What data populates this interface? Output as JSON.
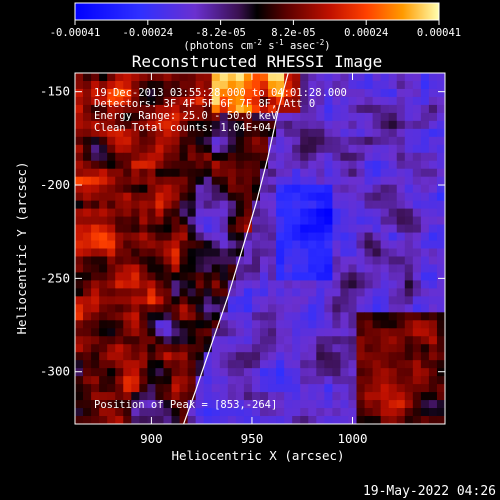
{
  "chart_data": {
    "type": "heatmap",
    "title": "Reconstructed RHESSI Image",
    "xlabel": "Heliocentric X (arcsec)",
    "ylabel": "Heliocentric Y (arcsec)",
    "xlim": [
      862,
      1046
    ],
    "ylim": [
      -328,
      -140
    ],
    "x_ticks": [
      900,
      950,
      1000
    ],
    "y_ticks": [
      -150,
      -200,
      -250,
      -300
    ],
    "colorbar": {
      "ticks": [
        "-0.00041",
        "-0.00024",
        "-8.2e-05",
        "8.2e-05",
        "0.00024",
        "0.00041"
      ],
      "range": [
        -0.00041,
        0.00041
      ],
      "unit_base": "(photons cm",
      "unit_exp1": "-2",
      "unit_mid": " s",
      "unit_exp2": "-1",
      "unit_mid2": " asec",
      "unit_exp3": "-2",
      "unit_end": ")"
    },
    "annotations": {
      "time": "19-Dec-2013 03:55:28.000 to 04:01:28.000",
      "detectors": "Detectors: 3F 4F 5F 6F 7F 8F, Att 0",
      "energy": "Energy Range: 25.0 - 50.0 keV",
      "method": "Clean     Total counts: 1.04E+04",
      "peak": "Position of Peak = [853,-264]"
    },
    "limb_curve": {
      "x": [
        916,
        922,
        930,
        938,
        945,
        952,
        958,
        963,
        968
      ],
      "y": [
        -328,
        -310,
        -285,
        -260,
        -235,
        -210,
        -185,
        -160,
        -140
      ]
    },
    "footer_date": "19-May-2022 04:26"
  }
}
